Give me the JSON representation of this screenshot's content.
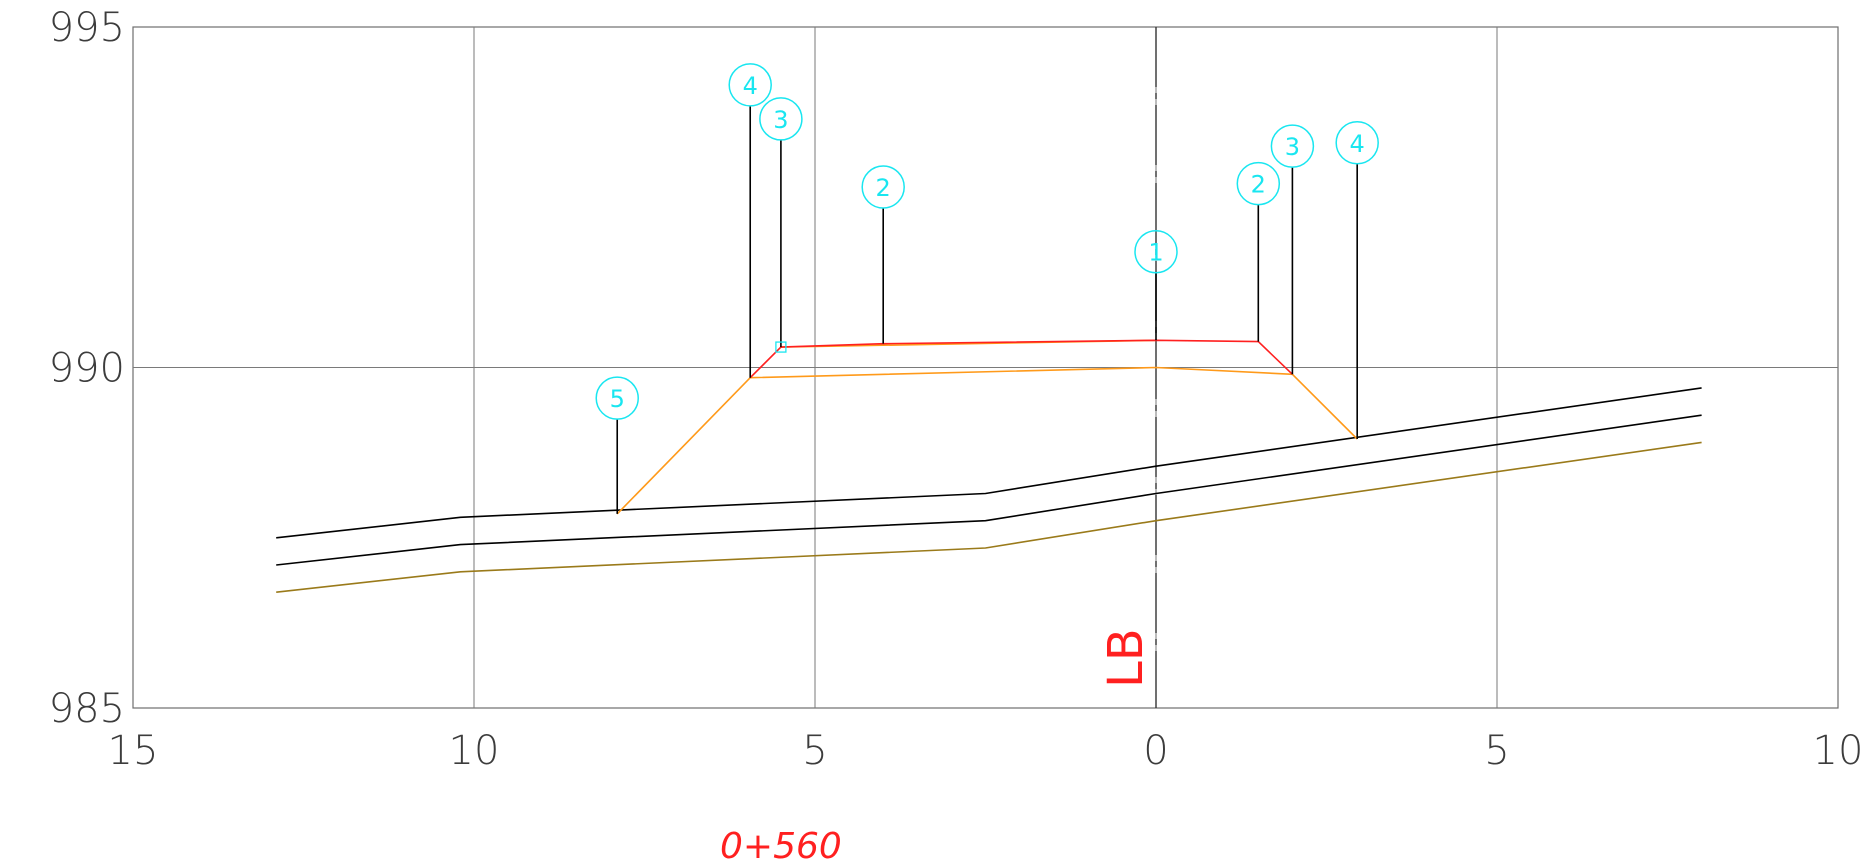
{
  "chart_data": {
    "type": "line",
    "x_ticks": [
      "15",
      "10",
      "5",
      "0",
      "5",
      "10"
    ],
    "y_ticks": [
      "995",
      "990",
      "985"
    ],
    "xlim": [
      -15,
      10
    ],
    "ylim": [
      985,
      995
    ],
    "grid": true,
    "centerline_label": "LB",
    "station_label": "0+560",
    "series": [
      {
        "color": "#000000",
        "points": [
          [
            -12.9,
            987.5
          ],
          [
            -10.2,
            987.8
          ],
          [
            -2.5,
            988.15
          ],
          [
            0,
            988.55
          ],
          [
            8,
            989.7
          ]
        ]
      },
      {
        "color": "#000000",
        "points": [
          [
            -12.9,
            987.1
          ],
          [
            -10.2,
            987.4
          ],
          [
            -2.5,
            987.75
          ],
          [
            0,
            988.15
          ],
          [
            8,
            989.3
          ]
        ]
      },
      {
        "color": "#9a7a1a",
        "points": [
          [
            -12.9,
            986.7
          ],
          [
            -10.2,
            987.0
          ],
          [
            -2.5,
            987.35
          ],
          [
            0,
            987.75
          ],
          [
            8,
            988.9
          ]
        ]
      },
      {
        "color": "#ff9a1a",
        "points": [
          [
            -7.9,
            987.85
          ],
          [
            -5.95,
            989.85
          ],
          [
            0,
            990.0
          ],
          [
            2.0,
            989.9
          ],
          [
            2.95,
            988.95
          ]
        ]
      },
      {
        "color": "#ff9a1a",
        "points": [
          [
            -5.5,
            990.3
          ],
          [
            0,
            990.4
          ]
        ]
      },
      {
        "color": "#ff2020",
        "points": [
          [
            -5.95,
            989.85
          ],
          [
            -5.5,
            990.3
          ],
          [
            -4.0,
            990.35
          ],
          [
            0,
            990.4
          ],
          [
            1.5,
            990.38
          ],
          [
            2.0,
            989.9
          ]
        ]
      }
    ],
    "markers": [
      {
        "label": "4",
        "x": -5.95,
        "y_base": 989.85,
        "y_label": 994.15
      },
      {
        "label": "3",
        "x": -5.5,
        "y_base": 990.3,
        "y_label": 993.65
      },
      {
        "label": "2",
        "x": -4.0,
        "y_base": 990.35,
        "y_label": 992.65
      },
      {
        "label": "1",
        "x": 0.0,
        "y_base": 990.4,
        "y_label": 991.7
      },
      {
        "label": "2",
        "x": 1.5,
        "y_base": 990.38,
        "y_label": 992.7
      },
      {
        "label": "3",
        "x": 2.0,
        "y_base": 989.9,
        "y_label": 993.25
      },
      {
        "label": "4",
        "x": 2.95,
        "y_base": 988.95,
        "y_label": 993.3
      },
      {
        "label": "5",
        "x": -7.9,
        "y_base": 987.85,
        "y_label": 989.55
      }
    ]
  }
}
